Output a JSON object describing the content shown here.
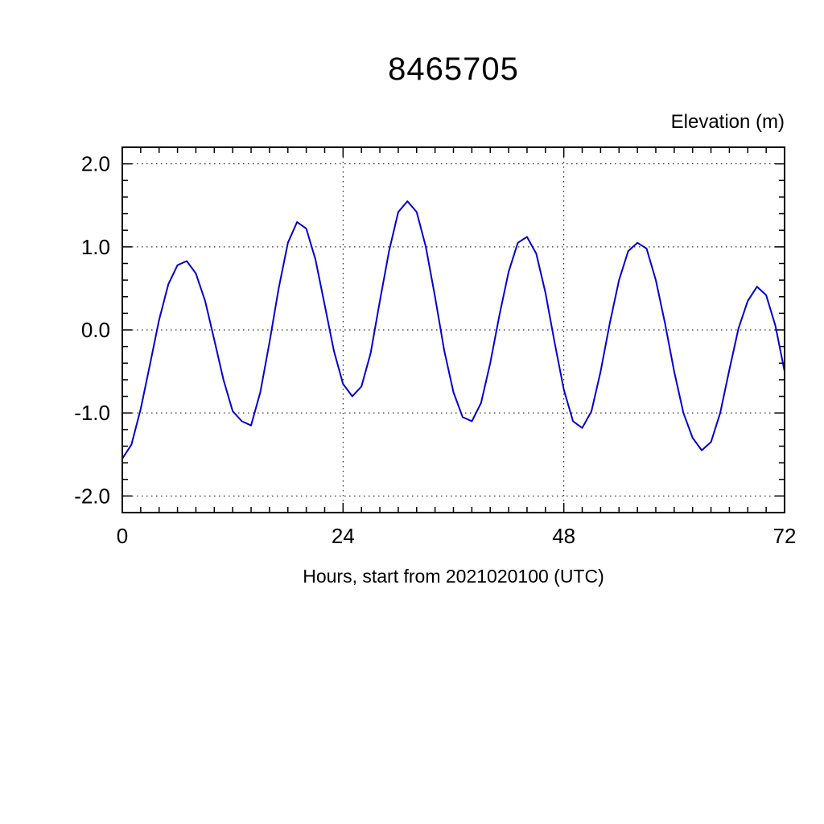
{
  "chart_data": {
    "type": "line",
    "title": "8465705",
    "ylabel": "Elevation (m)",
    "xlabel": "Hours, start from 2021020100 (UTC)",
    "xlim": [
      0,
      72
    ],
    "ylim": [
      -2.2,
      2.2
    ],
    "xticks": [
      0,
      24,
      48,
      72
    ],
    "xtick_labels": [
      "0",
      "24",
      "48",
      "72"
    ],
    "yticks": [
      2.0,
      1.0,
      0.0,
      -1.0,
      -2.0
    ],
    "ytick_labels": [
      "2.0",
      "1.0",
      "0.0",
      "-1.0",
      "-2.0"
    ],
    "x_minor_step": 2,
    "y_minor_step": 0.2,
    "grid": true,
    "grid_style": "dashed",
    "legend": "none",
    "line_color": "#0000cd",
    "frame_color": "#000000",
    "series": [
      {
        "name": "elevation",
        "x": [
          0,
          1,
          2,
          3,
          4,
          5,
          6,
          7,
          8,
          9,
          10,
          11,
          12,
          13,
          14,
          15,
          16,
          17,
          18,
          19,
          20,
          21,
          22,
          23,
          24,
          25,
          26,
          27,
          28,
          29,
          30,
          31,
          32,
          33,
          34,
          35,
          36,
          37,
          38,
          39,
          40,
          41,
          42,
          43,
          44,
          45,
          46,
          47,
          48,
          49,
          50,
          51,
          52,
          53,
          54,
          55,
          56,
          57,
          58,
          59,
          60,
          61,
          62,
          63,
          64,
          65,
          66,
          67,
          68,
          69,
          70,
          71,
          72
        ],
        "y": [
          -1.55,
          -1.38,
          -0.95,
          -0.42,
          0.12,
          0.55,
          0.78,
          0.83,
          0.68,
          0.35,
          -0.12,
          -0.6,
          -0.98,
          -1.1,
          -1.15,
          -0.75,
          -0.15,
          0.5,
          1.05,
          1.3,
          1.22,
          0.85,
          0.3,
          -0.25,
          -0.65,
          -0.8,
          -0.68,
          -0.28,
          0.35,
          0.95,
          1.42,
          1.55,
          1.42,
          1.0,
          0.4,
          -0.25,
          -0.75,
          -1.05,
          -1.1,
          -0.88,
          -0.4,
          0.18,
          0.7,
          1.05,
          1.12,
          0.92,
          0.45,
          -0.15,
          -0.72,
          -1.1,
          -1.18,
          -0.98,
          -0.5,
          0.08,
          0.6,
          0.95,
          1.05,
          0.98,
          0.6,
          0.08,
          -0.5,
          -1.0,
          -1.3,
          -1.45,
          -1.35,
          -1.0,
          -0.48,
          0.02,
          0.35,
          0.52,
          0.42,
          0.05,
          -0.5
        ]
      }
    ]
  }
}
